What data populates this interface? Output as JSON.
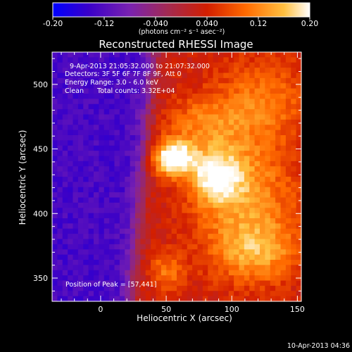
{
  "chart_data": {
    "type": "heatmap",
    "title": "Reconstructed RHESSI Image",
    "xlabel": "Heliocentric X (arcsec)",
    "ylabel": "Heliocentric Y (arcsec)",
    "xlim": [
      -37,
      153
    ],
    "ylim": [
      332,
      525
    ],
    "x_ticks": [
      0,
      50,
      100,
      150
    ],
    "x_tick_labels": [
      "0",
      "50",
      "100",
      "150"
    ],
    "y_ticks": [
      350,
      400,
      450,
      500
    ],
    "y_tick_labels": [
      "350",
      "400",
      "450",
      "500"
    ],
    "colorbar": {
      "range": [
        -0.2,
        0.2
      ],
      "ticks": [
        -0.2,
        -0.12,
        -0.04,
        0.04,
        0.12,
        0.2
      ],
      "tick_labels": [
        "-0.20",
        "-0.12",
        "-0.040",
        "0.040",
        "0.12",
        "0.20"
      ],
      "units_label": "(photons cm⁻² s⁻¹ asec⁻²)",
      "colormap": [
        "#0000ff",
        "#3a00c8",
        "#7a22b0",
        "#a42a50",
        "#d21e00",
        "#ff6a00",
        "#ffc040",
        "#ffffff"
      ]
    },
    "annotations": {
      "time_range": "9-Apr-2013 21:05:32.000 to 21:07:32.000",
      "detectors": "Detectors: 3F 5F 6F 7F 8F 9F, Att 0",
      "energy_range": "Energy Range: 3.0 - 6.0 keV",
      "clean_label": "Clean",
      "total_counts": "Total counts: 3.32E+04",
      "peak_position": "Position of Peak = [57,441]"
    },
    "peak": [
      57,
      441
    ],
    "sources": [
      {
        "x": 55,
        "y": 443,
        "peak": 0.2,
        "sx": 11,
        "sy": 9
      },
      {
        "x": 88,
        "y": 428,
        "peak": 0.135,
        "sx": 14,
        "sy": 14
      },
      {
        "x": 110,
        "y": 412,
        "peak": 0.1,
        "sx": 28,
        "sy": 38
      },
      {
        "x": 78,
        "y": 468,
        "peak": 0.07,
        "sx": 22,
        "sy": 16
      },
      {
        "x": 50,
        "y": 355,
        "peak": 0.075,
        "sx": 10,
        "sy": 10
      },
      {
        "x": 120,
        "y": 370,
        "peak": 0.08,
        "sx": 22,
        "sy": 16
      },
      {
        "x": 125,
        "y": 490,
        "peak": 0.07,
        "sx": 25,
        "sy": 22
      }
    ],
    "background_level": 0.03,
    "off_disk_level": -0.13,
    "limb_x_at_ylim": [
      40,
      22
    ]
  },
  "footer": {
    "timestamp": "10-Apr-2013 04:36"
  }
}
